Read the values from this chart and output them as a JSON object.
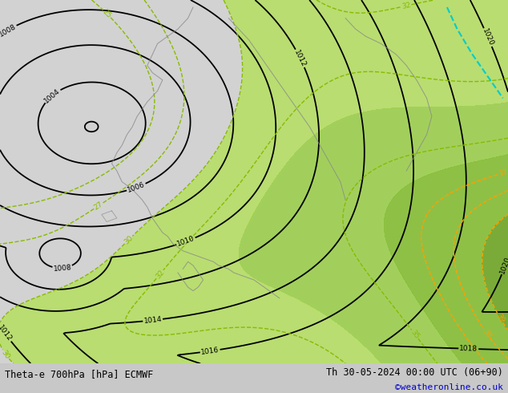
{
  "title_left": "Theta-e 700hPa [hPa] ECMWF",
  "title_right": "Th 30-05-2024 00:00 UTC (06+90)",
  "copyright": "©weatheronline.co.uk",
  "figsize": [
    6.34,
    4.9
  ],
  "dpi": 100,
  "copyright_color": "#0000cc",
  "bg_color": "#c8c8c8",
  "map_bg": "#d2d2d2",
  "green_fill_colors": [
    "#b8e068",
    "#9ed050",
    "#88c038",
    "#72a828"
  ],
  "green_fill_levels": [
    30,
    33,
    36,
    39,
    50
  ],
  "pressure_levels": [
    1002,
    1004,
    1006,
    1008,
    1010,
    1012,
    1014,
    1016,
    1018,
    1020,
    1022,
    1024
  ],
  "theta_yg_levels": [
    25,
    27,
    30,
    32,
    35
  ],
  "theta_orange_levels": [
    37,
    38,
    39,
    40,
    41,
    42
  ],
  "coast_color": "#888888",
  "pressure_lw": 1.3,
  "theta_lw": 1.0
}
